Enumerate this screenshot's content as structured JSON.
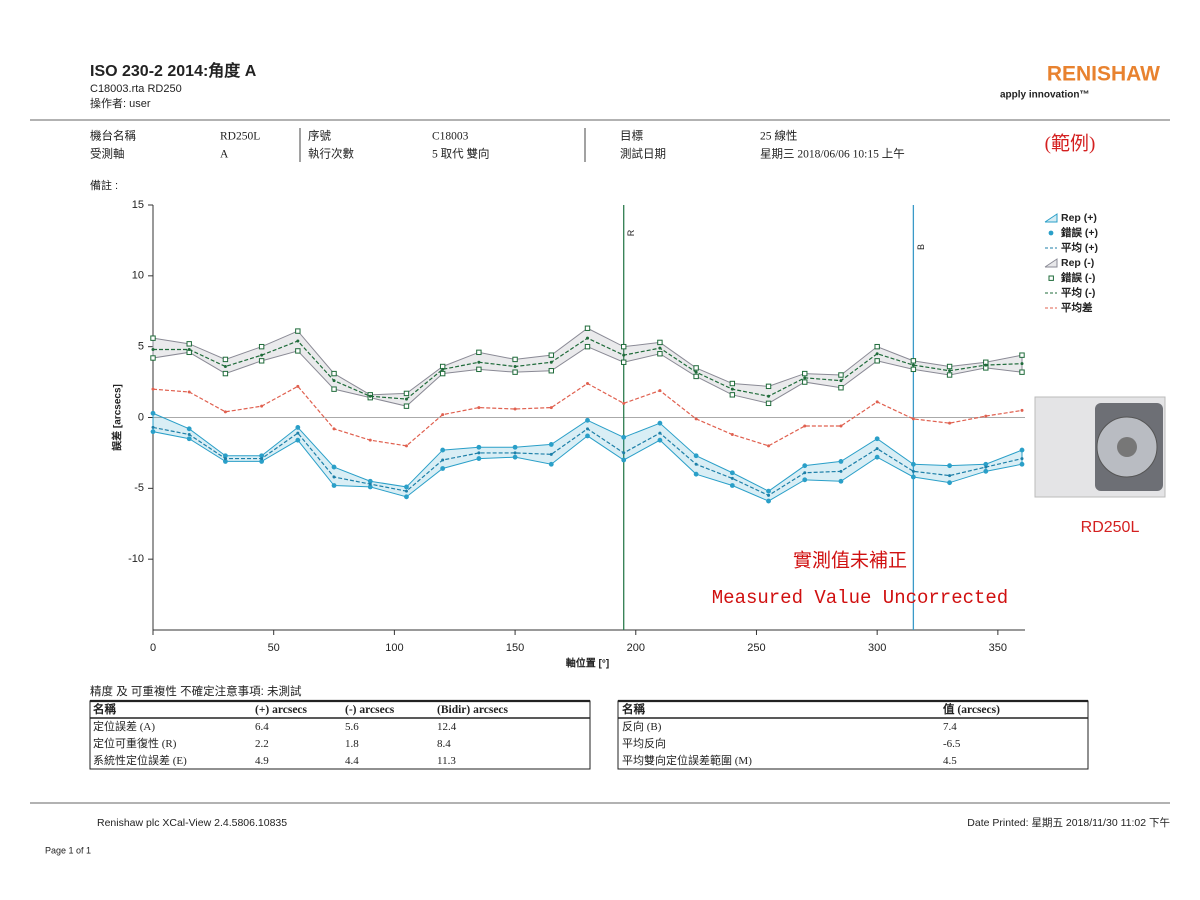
{
  "header": {
    "title": "ISO 230-2 2014:角度 A",
    "file": "C18003.rta RD250",
    "operator": "操作者: user",
    "logo": "RENISHAW",
    "tagline": "apply innovation™",
    "stamp": "(範例)"
  },
  "info": [
    [
      "機台名稱",
      "RD250L",
      "序號",
      "C18003",
      "目標",
      "25 線性"
    ],
    [
      "受測軸",
      "A",
      "執行次數",
      "5 取代 雙向",
      "測試日期",
      "星期三 2018/06/06 10:15 上午"
    ]
  ],
  "remarks": "備註 :",
  "chart_data": {
    "type": "line",
    "xlabel": "軸位置 [°]",
    "ylabel": "誤差 [arcsecs]",
    "x": [
      0,
      15,
      30,
      45,
      60,
      75,
      90,
      105,
      120,
      135,
      150,
      165,
      180,
      195,
      210,
      225,
      240,
      255,
      270,
      285,
      300,
      315,
      330,
      345,
      360
    ],
    "xlim": [
      0,
      360
    ],
    "xticks": [
      0,
      50,
      100,
      150,
      200,
      250,
      300,
      350
    ],
    "ylim": [
      -15,
      15
    ],
    "yticks": [
      -10,
      -5,
      0,
      5,
      10,
      15
    ],
    "zero_line": true,
    "series": [
      {
        "name": "Rep (+)",
        "color": "#2a9fc8",
        "upper": [
          0.3,
          -0.8,
          -2.7,
          -2.7,
          -0.7,
          -3.5,
          -4.5,
          -4.9,
          -2.3,
          -2.1,
          -2.1,
          -1.9,
          -0.2,
          -1.4,
          -0.4,
          -2.7,
          -3.9,
          -5.2,
          -3.4,
          -3.1,
          -1.5,
          -3.3,
          -3.4,
          -3.3,
          -2.3
        ],
        "lower": [
          -1.0,
          -1.5,
          -3.1,
          -3.1,
          -1.6,
          -4.8,
          -4.9,
          -5.6,
          -3.6,
          -2.9,
          -2.8,
          -3.3,
          -1.3,
          -3.0,
          -1.6,
          -4.0,
          -4.8,
          -5.9,
          -4.4,
          -4.5,
          -2.8,
          -4.2,
          -4.6,
          -3.8,
          -3.3
        ]
      },
      {
        "name": "錯誤 (+)",
        "color": "#2a9fc8",
        "marker": "circle"
      },
      {
        "name": "平均 (+)",
        "color": "#1c7fa8",
        "values": [
          -0.7,
          -1.2,
          -2.9,
          -2.9,
          -1.1,
          -4.2,
          -4.7,
          -5.2,
          -3.0,
          -2.5,
          -2.5,
          -2.6,
          -0.8,
          -2.5,
          -1.1,
          -3.3,
          -4.3,
          -5.5,
          -3.9,
          -3.8,
          -2.2,
          -3.8,
          -4.1,
          -3.5,
          -2.9
        ]
      },
      {
        "name": "Rep (-)",
        "color": "#8a8a95",
        "upper": [
          5.6,
          5.2,
          4.1,
          5.0,
          6.1,
          3.1,
          1.6,
          1.7,
          3.6,
          4.6,
          4.1,
          4.4,
          6.3,
          5.0,
          5.3,
          3.5,
          2.4,
          2.2,
          3.1,
          3.0,
          5.0,
          4.0,
          3.6,
          3.9,
          4.4
        ],
        "lower": [
          4.2,
          4.6,
          3.1,
          4.0,
          4.7,
          2.0,
          1.4,
          0.8,
          3.1,
          3.4,
          3.2,
          3.3,
          5.0,
          3.9,
          4.5,
          2.9,
          1.6,
          1.0,
          2.5,
          2.1,
          4.0,
          3.4,
          3.0,
          3.5,
          3.2
        ]
      },
      {
        "name": "錯誤 (-)",
        "color": "#1f6b3a",
        "marker": "square"
      },
      {
        "name": "平均 (-)",
        "color": "#1f6b3a",
        "values": [
          4.8,
          4.8,
          3.6,
          4.4,
          5.4,
          2.6,
          1.5,
          1.3,
          3.4,
          3.9,
          3.6,
          3.9,
          5.6,
          4.4,
          4.9,
          3.2,
          2.0,
          1.5,
          2.8,
          2.6,
          4.5,
          3.7,
          3.3,
          3.7,
          3.8
        ]
      },
      {
        "name": "平均差",
        "color": "#e0604f",
        "values": [
          2.0,
          1.8,
          0.4,
          0.8,
          2.2,
          -0.8,
          -1.6,
          -2.0,
          0.2,
          0.7,
          0.6,
          0.7,
          2.4,
          1.0,
          1.9,
          -0.1,
          -1.2,
          -2.0,
          -0.6,
          -0.6,
          1.1,
          -0.1,
          -0.4,
          0.1,
          0.5
        ]
      }
    ],
    "reference_lines": [
      {
        "x": 195,
        "label": "R",
        "color": "#2e7d4f"
      },
      {
        "x": 315,
        "label": "B",
        "color": "#3a9ac8"
      }
    ]
  },
  "product": {
    "label": "RD250L"
  },
  "overlay": [
    "實測值未補正",
    "Measured Value Uncorrected"
  ],
  "uncertainty_note": "精度 及 可重複性 不確定注意事項: 未測試",
  "table1": {
    "header": [
      "名稱",
      "(+) arcsecs",
      "(-) arcsecs",
      "(Bidir) arcsecs"
    ],
    "rows": [
      [
        "定位誤差 (A)",
        "6.4",
        "5.6",
        "12.4"
      ],
      [
        "定位可重復性 (R)",
        "2.2",
        "1.8",
        "8.4"
      ],
      [
        "系統性定位誤差 (E)",
        "4.9",
        "4.4",
        "11.3"
      ]
    ]
  },
  "table2": {
    "header": [
      "名稱",
      "值 (arcsecs)"
    ],
    "rows": [
      [
        "反向 (B)",
        "7.4"
      ],
      [
        "平均反向",
        "-6.5"
      ],
      [
        "平均雙向定位誤差範圍 (M)",
        "4.5"
      ]
    ]
  },
  "footer": {
    "software": "Renishaw plc XCal-View 2.4.5806.10835",
    "printed": "Date Printed: 星期五 2018/11/30 11:02 下午",
    "page": "Page 1 of 1"
  }
}
